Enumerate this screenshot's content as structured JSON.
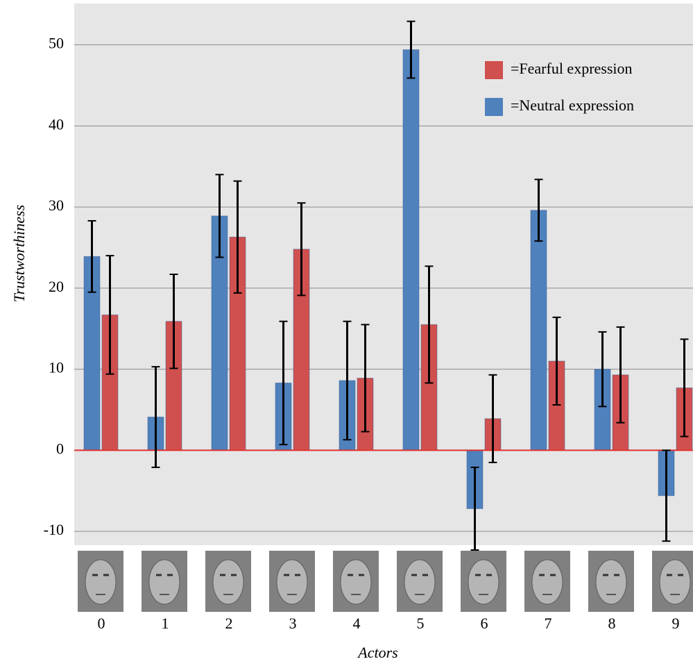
{
  "chart_data": {
    "type": "bar",
    "x_label": "Actors",
    "y_label": "Trustworthiness",
    "categories": [
      "0",
      "1",
      "2",
      "3",
      "4",
      "5",
      "6",
      "7",
      "8",
      "9"
    ],
    "series": [
      {
        "name": "=Neutral expression",
        "color": "#4f81bd",
        "values": [
          23.9,
          4.1,
          28.9,
          8.3,
          8.6,
          49.4,
          -7.2,
          29.6,
          10.0,
          -5.6
        ],
        "errors": [
          4.4,
          6.2,
          5.1,
          7.6,
          7.3,
          3.5,
          5.1,
          3.8,
          4.6,
          5.6
        ]
      },
      {
        "name": "=Fearful expression",
        "color": "#d0504f",
        "values": [
          16.7,
          15.9,
          26.3,
          24.8,
          8.9,
          15.5,
          3.9,
          11.0,
          9.3,
          7.7
        ],
        "errors": [
          7.3,
          5.8,
          6.9,
          5.7,
          6.6,
          7.2,
          5.4,
          5.4,
          5.9,
          6.0
        ]
      }
    ],
    "ylim": [
      -11.7,
      55.1
    ],
    "yticks": [
      -10,
      0,
      10,
      20,
      30,
      40,
      50
    ],
    "grid": true,
    "baseline_color": "#e0302e",
    "legend": "top-right"
  }
}
